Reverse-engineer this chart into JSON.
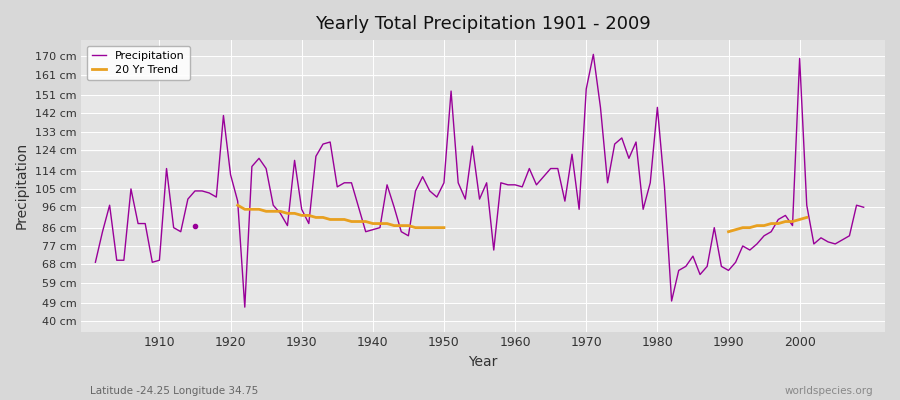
{
  "title": "Yearly Total Precipitation 1901 - 2009",
  "xlabel": "Year",
  "ylabel": "Precipitation",
  "footnote_left": "Latitude -24.25 Longitude 34.75",
  "footnote_right": "worldspecies.org",
  "bg_color": "#d8d8d8",
  "plot_bg_color": "#e6e6e6",
  "grid_color": "#ffffff",
  "line_color": "#990099",
  "trend_color": "#e8a020",
  "ytick_labels": [
    "40 cm",
    "49 cm",
    "59 cm",
    "68 cm",
    "77 cm",
    "86 cm",
    "96 cm",
    "105 cm",
    "114 cm",
    "124 cm",
    "133 cm",
    "142 cm",
    "151 cm",
    "161 cm",
    "170 cm"
  ],
  "ytick_values": [
    40,
    49,
    59,
    68,
    77,
    86,
    96,
    105,
    114,
    124,
    133,
    142,
    151,
    161,
    170
  ],
  "years": [
    1901,
    1902,
    1903,
    1904,
    1905,
    1906,
    1907,
    1908,
    1909,
    1910,
    1911,
    1912,
    1913,
    1914,
    1915,
    1916,
    1917,
    1918,
    1919,
    1920,
    1921,
    1922,
    1923,
    1924,
    1925,
    1926,
    1927,
    1928,
    1929,
    1930,
    1931,
    1932,
    1933,
    1934,
    1935,
    1936,
    1937,
    1938,
    1939,
    1940,
    1941,
    1942,
    1943,
    1944,
    1945,
    1946,
    1947,
    1948,
    1949,
    1950,
    1951,
    1952,
    1953,
    1954,
    1955,
    1956,
    1957,
    1958,
    1959,
    1960,
    1961,
    1962,
    1963,
    1964,
    1965,
    1966,
    1967,
    1968,
    1969,
    1970,
    1971,
    1972,
    1973,
    1974,
    1975,
    1976,
    1977,
    1978,
    1979,
    1980,
    1981,
    1982,
    1983,
    1984,
    1985,
    1986,
    1987,
    1988,
    1989,
    1990,
    1991,
    1992,
    1993,
    1994,
    1995,
    1996,
    1997,
    1998,
    1999,
    2000,
    2001,
    2002,
    2003,
    2004,
    2005,
    2006,
    2007,
    2008,
    2009
  ],
  "precip": [
    69,
    84,
    97,
    70,
    70,
    105,
    88,
    88,
    69,
    70,
    115,
    86,
    84,
    100,
    104,
    104,
    103,
    101,
    141,
    112,
    99,
    47,
    116,
    120,
    115,
    97,
    93,
    87,
    119,
    95,
    88,
    121,
    127,
    128,
    106,
    108,
    108,
    96,
    84,
    85,
    86,
    107,
    96,
    84,
    82,
    104,
    111,
    104,
    101,
    108,
    153,
    108,
    100,
    126,
    100,
    108,
    75,
    108,
    107,
    107,
    106,
    115,
    107,
    111,
    115,
    115,
    99,
    122,
    95,
    154,
    171,
    145,
    108,
    127,
    130,
    120,
    128,
    95,
    108,
    145,
    106,
    50,
    65,
    67,
    72,
    63,
    67,
    86,
    67,
    65,
    69,
    77,
    75,
    78,
    82,
    84,
    90,
    92,
    87,
    169,
    97,
    78,
    81,
    79,
    78,
    80,
    82,
    97,
    96
  ],
  "trend_years": [
    1921,
    1922,
    1923,
    1924,
    1925,
    1926,
    1927,
    1928,
    1929,
    1930,
    1931,
    1932,
    1933,
    1934,
    1935,
    1936,
    1937,
    1938,
    1939,
    1940,
    1941,
    1942,
    1943,
    1944,
    1945,
    1946,
    1947,
    1948,
    1949,
    1950,
    1990,
    1991,
    1992,
    1993,
    1994,
    1995,
    1996,
    1997,
    1998,
    1999,
    2000,
    2001
  ],
  "trend_vals": [
    97,
    95,
    95,
    95,
    94,
    94,
    94,
    93,
    93,
    92,
    92,
    91,
    91,
    90,
    90,
    90,
    89,
    89,
    89,
    88,
    88,
    88,
    87,
    87,
    87,
    86,
    86,
    86,
    86,
    86,
    84,
    85,
    86,
    86,
    87,
    87,
    88,
    88,
    89,
    89,
    90,
    91
  ],
  "dot_year": 1915,
  "dot_val": 87,
  "xlim": [
    1899,
    2012
  ],
  "ylim": [
    35,
    178
  ],
  "xticks": [
    1910,
    1920,
    1930,
    1940,
    1950,
    1960,
    1970,
    1980,
    1990,
    2000
  ]
}
